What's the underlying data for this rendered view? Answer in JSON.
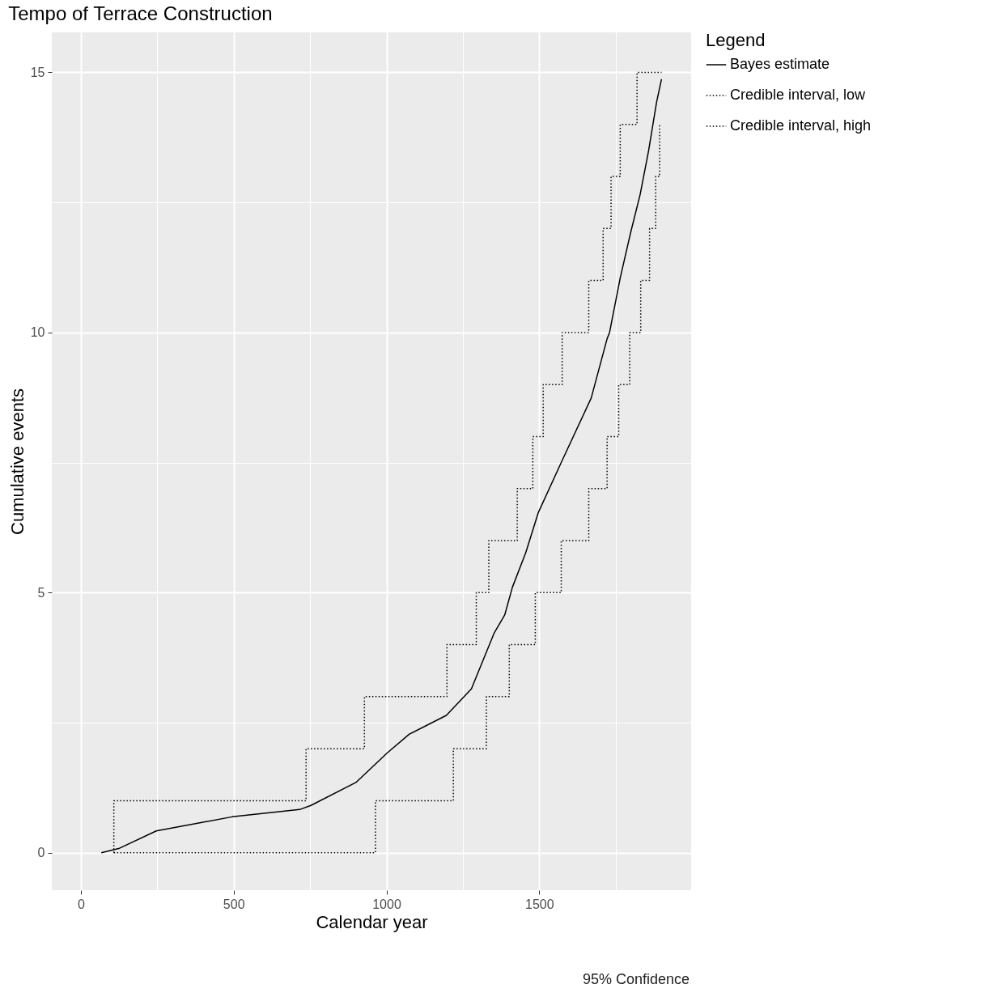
{
  "chart_data": {
    "type": "line",
    "title": "Tempo of Terrace Construction",
    "xlabel": "Calendar year",
    "ylabel": "Cumulative events",
    "legend_title": "Legend",
    "annotations": [
      "95% Confidence"
    ],
    "xlim": [
      -95,
      1997
    ],
    "ylim": [
      -0.72,
      15.77
    ],
    "xticks": [
      0,
      {
        "value": 250,
        "label": null
      },
      500,
      {
        "value": 750,
        "label": null
      },
      1000,
      {
        "value": 1250,
        "label": null
      },
      1500,
      {
        "value": 1750,
        "label": null
      }
    ],
    "yticks": [
      0,
      {
        "value": 2.5,
        "label": null
      },
      5,
      {
        "value": 7.5,
        "label": null
      },
      10,
      {
        "value": 12.5,
        "label": null
      },
      15
    ],
    "grid": true,
    "legend": "right",
    "series": [
      {
        "name": "Bayes estimate",
        "color": "#000000",
        "line_style": "solid",
        "x": [
          67,
          124,
          247,
          495,
          716,
          753,
          900,
          1003,
          1075,
          1196,
          1278,
          1353,
          1387,
          1412,
          1456,
          1497,
          1575,
          1670,
          1722,
          1730,
          1765,
          1799,
          1830,
          1858,
          1884,
          1900
        ],
        "values": [
          0,
          0.08,
          0.42,
          0.69,
          0.83,
          0.91,
          1.35,
          1.92,
          2.28,
          2.64,
          3.15,
          4.23,
          4.57,
          5.1,
          5.77,
          6.54,
          7.54,
          8.74,
          9.88,
          10,
          11.05,
          11.92,
          12.65,
          13.5,
          14.43,
          14.87
        ]
      },
      {
        "name": "Credible interval, low",
        "type": "step",
        "color": "#000000",
        "line_style": "dotted",
        "x": [
          108,
          964,
          1219,
          1327,
          1402,
          1487,
          1572,
          1662,
          1722,
          1760,
          1796,
          1832,
          1861,
          1881,
          1894,
          1897
        ],
        "values": [
          0,
          1,
          2,
          3,
          4,
          5,
          6,
          7,
          8,
          9,
          10,
          11,
          12,
          13,
          14,
          14
        ]
      },
      {
        "name": "Credible interval, high",
        "type": "step",
        "color": "#000000",
        "line_style": "dotted",
        "x": [
          108,
          108,
          737,
          928,
          1198,
          1294,
          1335,
          1428,
          1479,
          1513,
          1575,
          1662,
          1709,
          1735,
          1765,
          1820,
          1900
        ],
        "values": [
          0,
          1,
          2,
          3,
          4,
          5,
          6,
          7,
          8,
          9,
          10,
          11,
          12,
          13,
          14,
          15,
          15
        ]
      }
    ]
  }
}
